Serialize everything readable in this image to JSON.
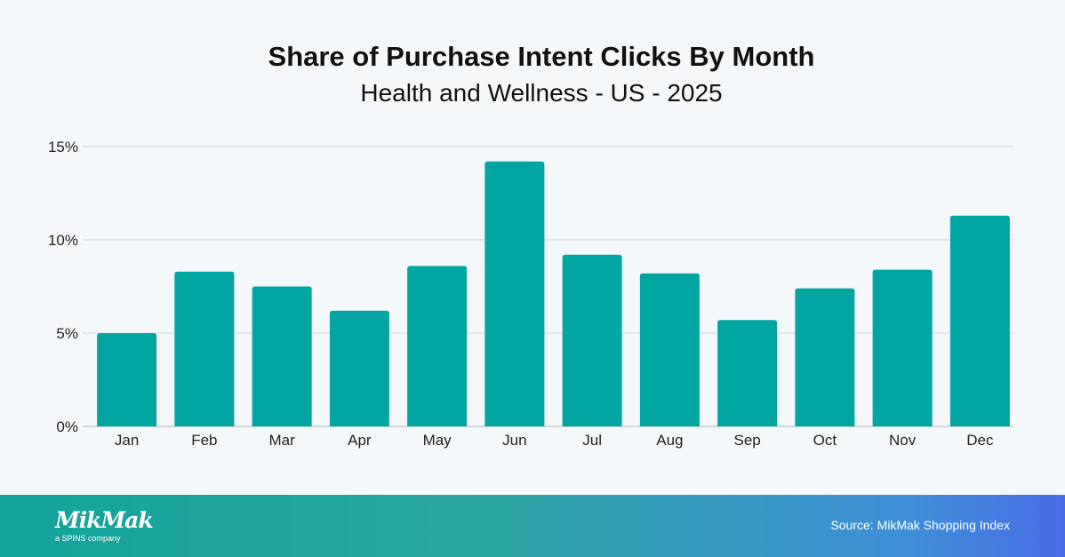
{
  "chart_data": {
    "type": "bar",
    "title": "Share of Purchase Intent Clicks By Month",
    "subtitle": "Health and Wellness - US - 2025",
    "categories": [
      "Jan",
      "Feb",
      "Mar",
      "Apr",
      "May",
      "Jun",
      "Jul",
      "Aug",
      "Sep",
      "Oct",
      "Nov",
      "Dec"
    ],
    "values": [
      5.0,
      8.3,
      7.5,
      6.2,
      8.6,
      14.2,
      9.2,
      8.2,
      5.7,
      7.4,
      8.4,
      11.3
    ],
    "unit": "%",
    "ylim": [
      0,
      15
    ],
    "yticks": [
      "0%",
      "5%",
      "10%",
      "15%"
    ],
    "ytick_values": [
      0,
      5,
      10,
      15
    ],
    "grid": true,
    "xlabel": "",
    "ylabel": "",
    "bar_color": "#01a6a3"
  },
  "footer": {
    "logo": "MikMak",
    "logo_tagline": "a SPINS company",
    "source": "Source: MikMak Shopping Index"
  }
}
